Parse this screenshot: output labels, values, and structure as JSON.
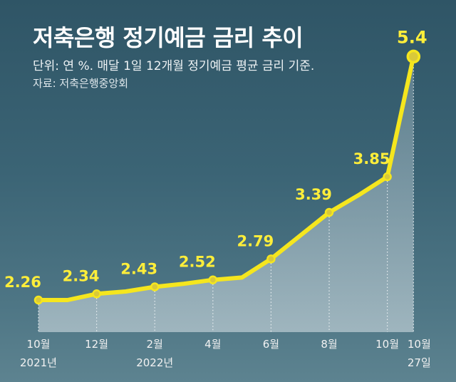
{
  "title": "저축은행 정기예금 금리 추이",
  "unit_note": "단위: 연 %. 매달 1일 12개월 정기예금 평균 금리 기준.",
  "source": "자료: 저축은행중앙회",
  "colors": {
    "line": "#f5e61e",
    "label": "#ffee3a",
    "marker_fill": "#d9c93a"
  },
  "chart_data": {
    "type": "line",
    "title": "저축은행 정기예금 금리 추이",
    "ylabel": "연 %",
    "xlabel": "",
    "ylim": [
      0,
      6
    ],
    "points": [
      {
        "x": 0,
        "y": 2.26,
        "label": "2.26",
        "marker": true,
        "tick": [
          "10월",
          "2021년"
        ]
      },
      {
        "x": 1,
        "y": 2.26,
        "marker": false
      },
      {
        "x": 2,
        "y": 2.34,
        "label": "2.34",
        "marker": true,
        "tick": [
          "12월"
        ]
      },
      {
        "x": 3,
        "y": 2.37,
        "marker": false
      },
      {
        "x": 4,
        "y": 2.43,
        "label": "2.43",
        "marker": true,
        "tick": [
          "2월",
          "2022년"
        ]
      },
      {
        "x": 5,
        "y": 2.47,
        "marker": false
      },
      {
        "x": 6,
        "y": 2.52,
        "label": "2.52",
        "marker": true,
        "tick": [
          "4월"
        ]
      },
      {
        "x": 7,
        "y": 2.55,
        "marker": false
      },
      {
        "x": 8,
        "y": 2.79,
        "label": "2.79",
        "marker": true,
        "tick": [
          "6월"
        ]
      },
      {
        "x": 9,
        "y": 3.09,
        "marker": false
      },
      {
        "x": 10,
        "y": 3.39,
        "label": "3.39",
        "marker": true,
        "tick": [
          "8월"
        ]
      },
      {
        "x": 11,
        "y": 3.61,
        "marker": false
      },
      {
        "x": 12,
        "y": 3.85,
        "label": "3.85",
        "marker": true,
        "tick": [
          "10월"
        ]
      },
      {
        "x": 12.9,
        "y": 5.4,
        "label": "5.4",
        "marker": true,
        "tick": [
          "10월",
          "27일"
        ]
      }
    ]
  }
}
